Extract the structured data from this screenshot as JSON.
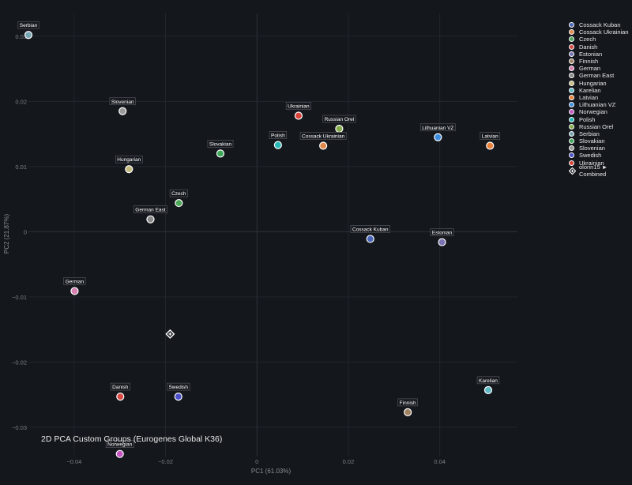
{
  "chart_data": {
    "type": "scatter",
    "title": "2D PCA Custom Groups (Eurogenes Global K36)",
    "xlabel": "PC1 (61.03%)",
    "ylabel": "PC2 (21.87%)",
    "xlim": [
      -0.05,
      0.057
    ],
    "ylim": [
      -0.0345,
      0.0335
    ],
    "xticks": [
      -0.04,
      -0.02,
      0,
      0.02,
      0.04
    ],
    "xtick_labels": [
      "−0.04",
      "−0.02",
      "0",
      "0.02",
      "0.04"
    ],
    "yticks": [
      -0.03,
      -0.02,
      -0.01,
      0,
      0.01,
      0.02,
      0.03
    ],
    "ytick_labels": [
      "−0.03",
      "−0.02",
      "−0.01",
      "0",
      "0.01",
      "0.02",
      "0.03"
    ],
    "grid": true,
    "legend_position": "top-right",
    "series": [
      {
        "name": "Cossack Kuban",
        "color": "#4a66b8",
        "x": 0.0248,
        "y": -0.0011
      },
      {
        "name": "Cossack Ukrainian",
        "color": "#e0894a",
        "x": 0.0145,
        "y": 0.0132
      },
      {
        "name": "Czech",
        "color": "#4ea85a",
        "x": -0.0171,
        "y": 0.0044
      },
      {
        "name": "Danish",
        "color": "#d84a45",
        "x": -0.0299,
        "y": -0.0253
      },
      {
        "name": "Estonian",
        "color": "#7a74b4",
        "x": 0.0405,
        "y": -0.0016
      },
      {
        "name": "Finnish",
        "color": "#a08262",
        "x": 0.033,
        "y": -0.0277
      },
      {
        "name": "German",
        "color": "#d67fb0",
        "x": -0.0399,
        "y": -0.0091
      },
      {
        "name": "German East",
        "color": "#8a8a8a",
        "x": -0.0233,
        "y": 0.0019
      },
      {
        "name": "Hungarian",
        "color": "#c4bc7e",
        "x": -0.028,
        "y": 0.0096
      },
      {
        "name": "Karelian",
        "color": "#5fb9c4",
        "x": 0.0506,
        "y": -0.0243
      },
      {
        "name": "Latvian",
        "color": "#e8813a",
        "x": 0.051,
        "y": 0.0132
      },
      {
        "name": "Lithuanian VZ",
        "color": "#3d8ee0",
        "x": 0.0396,
        "y": 0.0145
      },
      {
        "name": "Norwegian",
        "color": "#c655c4",
        "x": -0.03,
        "y": -0.0341
      },
      {
        "name": "Polish",
        "color": "#25b8b4",
        "x": 0.0046,
        "y": 0.0133
      },
      {
        "name": "Russian Orel",
        "color": "#86ac4c",
        "x": 0.018,
        "y": 0.0158
      },
      {
        "name": "Serbian",
        "color": "#78a6b2",
        "x": -0.05,
        "y": 0.0302
      },
      {
        "name": "Slovakian",
        "color": "#3fa758",
        "x": -0.008,
        "y": 0.012
      },
      {
        "name": "Slovenian",
        "color": "#9a9a9a",
        "x": -0.0294,
        "y": 0.0185
      },
      {
        "name": "Swedish",
        "color": "#4b4fc9",
        "x": -0.0172,
        "y": -0.0253
      },
      {
        "name": "Ukrainian",
        "color": "#d8433a",
        "x": 0.0091,
        "y": 0.0178
      }
    ],
    "special_point": {
      "name": "olorin15 ► Combined",
      "x": -0.019,
      "y": -0.0157
    }
  }
}
